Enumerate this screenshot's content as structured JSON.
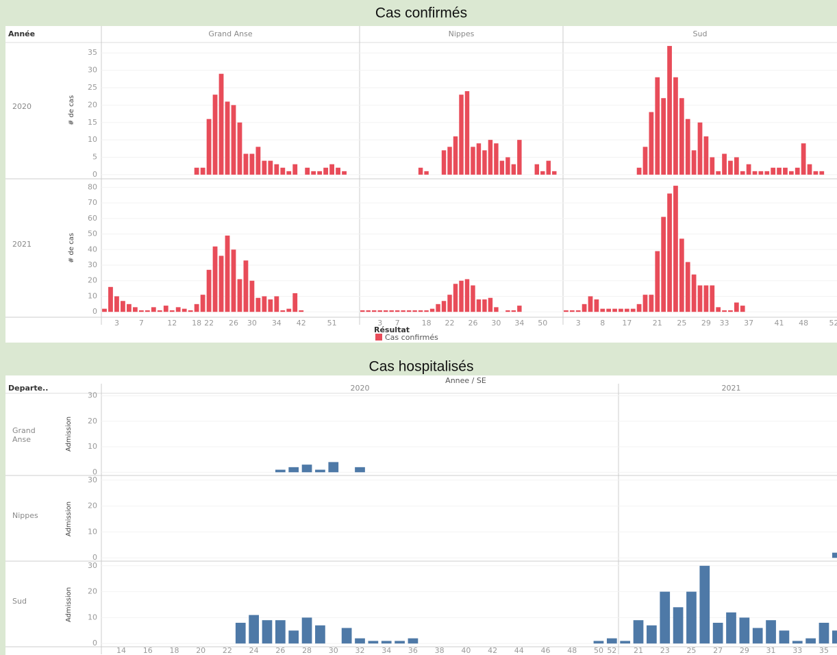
{
  "chart_data": [
    {
      "type": "bar",
      "title": "Cas confirmés",
      "row_header": "Année",
      "x_label": "Résultat",
      "series_name": "Cas confirmés",
      "color": "#e84c59",
      "grid": true,
      "columns": [
        {
          "name": "Grand Anse",
          "categories": [
            null,
            null,
            "3",
            null,
            null,
            null,
            "7",
            null,
            null,
            null,
            null,
            "12",
            null,
            null,
            null,
            "18",
            null,
            "22",
            null,
            null,
            null,
            "26",
            null,
            null,
            "30",
            null,
            null,
            null,
            "34",
            null,
            null,
            null,
            "42",
            null,
            null,
            null,
            null,
            "51",
            null,
            null,
            null,
            null
          ]
        },
        {
          "name": "Nippes",
          "categories": [
            null,
            null,
            null,
            "3",
            null,
            null,
            "7",
            null,
            null,
            null,
            null,
            "18",
            null,
            null,
            null,
            "22",
            null,
            null,
            null,
            "26",
            null,
            null,
            null,
            "30",
            null,
            null,
            null,
            "34",
            null,
            null,
            null,
            "50",
            null,
            null,
            null
          ]
        },
        {
          "name": "Sud",
          "categories": [
            null,
            null,
            "3",
            null,
            null,
            null,
            "8",
            null,
            null,
            null,
            "17",
            null,
            null,
            null,
            null,
            "21",
            null,
            null,
            null,
            "25",
            null,
            null,
            null,
            "29",
            null,
            null,
            "33",
            null,
            null,
            null,
            "37",
            null,
            null,
            null,
            null,
            "41",
            null,
            null,
            null,
            "48",
            null,
            null,
            null,
            null,
            "52"
          ]
        }
      ],
      "rows": [
        {
          "name": "2020",
          "y_label": "# de cas",
          "ylim": [
            -1,
            38
          ],
          "yticks": [
            0,
            5,
            10,
            15,
            20,
            25,
            30,
            35
          ],
          "values": [
            [
              null,
              null,
              null,
              null,
              null,
              null,
              null,
              null,
              null,
              null,
              null,
              null,
              null,
              null,
              null,
              2,
              2,
              16,
              23,
              29,
              21,
              20,
              15,
              6,
              6,
              8,
              4,
              4,
              3,
              2,
              1,
              3,
              null,
              2,
              1,
              1,
              2,
              3,
              2,
              1,
              null,
              null
            ],
            [
              null,
              null,
              null,
              null,
              null,
              null,
              null,
              null,
              null,
              null,
              2,
              1,
              null,
              null,
              7,
              8,
              11,
              23,
              24,
              8,
              9,
              7,
              10,
              9,
              4,
              5,
              3,
              10,
              null,
              null,
              3,
              1,
              4,
              1,
              null
            ],
            [
              null,
              null,
              null,
              null,
              null,
              null,
              null,
              null,
              null,
              null,
              null,
              null,
              2,
              8,
              18,
              28,
              22,
              37,
              28,
              22,
              16,
              7,
              15,
              11,
              5,
              1,
              6,
              4,
              5,
              1,
              3,
              1,
              1,
              1,
              2,
              2,
              2,
              1,
              2,
              9,
              3,
              1,
              1,
              null,
              null
            ]
          ]
        },
        {
          "name": "2021",
          "y_label": "# de cas",
          "ylim": [
            -3,
            85
          ],
          "yticks": [
            0,
            10,
            20,
            30,
            40,
            50,
            60,
            70,
            80
          ],
          "values": [
            [
              2,
              16,
              10,
              7,
              5,
              3,
              1,
              1,
              3,
              1,
              4,
              1,
              3,
              2,
              1,
              5,
              11,
              27,
              42,
              36,
              49,
              40,
              21,
              33,
              20,
              9,
              10,
              8,
              10,
              1,
              2,
              12,
              1,
              null,
              null,
              null,
              null,
              null,
              null,
              null,
              null,
              null
            ],
            [
              1,
              1,
              1,
              1,
              1,
              1,
              1,
              1,
              1,
              1,
              1,
              1,
              2,
              5,
              7,
              11,
              18,
              20,
              21,
              17,
              8,
              8,
              9,
              3,
              null,
              1,
              1,
              4,
              null,
              null,
              null,
              null,
              null,
              null,
              null
            ],
            [
              1,
              1,
              1,
              5,
              10,
              8,
              2,
              2,
              2,
              2,
              2,
              2,
              5,
              11,
              11,
              39,
              61,
              76,
              81,
              47,
              32,
              24,
              17,
              17,
              17,
              3,
              1,
              1,
              6,
              4,
              null,
              null,
              null,
              null,
              null,
              null,
              null,
              null,
              null,
              null,
              null,
              null,
              null,
              null,
              null
            ]
          ]
        }
      ]
    },
    {
      "type": "bar",
      "title": "Cas hospitalisés",
      "row_header": "Departe..",
      "column_header": "Annee / SE",
      "color": "#4e79a7",
      "grid": true,
      "columns": [
        {
          "name": "2020",
          "categories": [
            null,
            "14",
            null,
            "16",
            null,
            "18",
            null,
            "20",
            null,
            "22",
            null,
            "24",
            null,
            "26",
            null,
            "28",
            null,
            "30",
            null,
            "32",
            null,
            "34",
            null,
            "36",
            null,
            "38",
            null,
            "40",
            null,
            "42",
            null,
            "44",
            null,
            "46",
            null,
            "48",
            null,
            "50",
            "52"
          ]
        },
        {
          "name": "2021",
          "categories": [
            null,
            "21",
            null,
            "23",
            null,
            "25",
            null,
            "27",
            null,
            "29",
            null,
            "31",
            null,
            "33",
            null,
            "35",
            null
          ]
        }
      ],
      "rows": [
        {
          "name": "Grand Anse",
          "y_label": "Admission",
          "ylim": [
            -1,
            31
          ],
          "yticks": [
            0,
            10,
            20,
            30
          ],
          "values": [
            [
              null,
              null,
              null,
              null,
              null,
              null,
              null,
              null,
              null,
              null,
              null,
              null,
              null,
              1,
              2,
              3,
              1,
              4,
              null,
              2,
              null,
              null,
              null,
              null,
              null,
              null,
              null,
              null,
              null,
              null,
              null,
              null,
              null,
              null,
              null,
              null,
              null,
              null,
              null
            ],
            [
              null,
              null,
              null,
              null,
              null,
              null,
              null,
              null,
              null,
              null,
              null,
              null,
              null,
              null,
              null,
              null,
              null
            ]
          ]
        },
        {
          "name": "Nippes",
          "y_label": "Admission",
          "ylim": [
            -1,
            31
          ],
          "yticks": [
            0,
            10,
            20,
            30
          ],
          "values": [
            [
              null,
              null,
              null,
              null,
              null,
              null,
              null,
              null,
              null,
              null,
              null,
              null,
              null,
              null,
              null,
              null,
              null,
              null,
              null,
              null,
              null,
              null,
              null,
              null,
              null,
              null,
              null,
              null,
              null,
              null,
              null,
              null,
              null,
              null,
              null,
              null,
              null,
              null,
              null
            ],
            [
              null,
              null,
              null,
              null,
              null,
              null,
              null,
              null,
              null,
              null,
              null,
              null,
              null,
              null,
              null,
              null,
              2
            ]
          ]
        },
        {
          "name": "Sud",
          "y_label": "Admission",
          "ylim": [
            -1,
            31
          ],
          "yticks": [
            0,
            10,
            20,
            30
          ],
          "values": [
            [
              null,
              null,
              null,
              null,
              null,
              null,
              null,
              null,
              null,
              null,
              8,
              11,
              9,
              9,
              5,
              10,
              7,
              null,
              6,
              2,
              1,
              1,
              1,
              2,
              null,
              null,
              null,
              null,
              null,
              null,
              null,
              null,
              null,
              null,
              null,
              null,
              null,
              1,
              2
            ],
            [
              1,
              9,
              7,
              20,
              14,
              20,
              30,
              8,
              12,
              10,
              6,
              9,
              5,
              1,
              2,
              8,
              5
            ]
          ]
        }
      ]
    }
  ]
}
